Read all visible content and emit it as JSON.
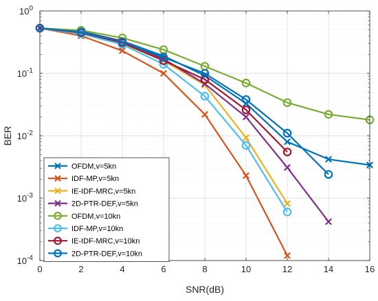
{
  "chart_data": {
    "type": "line",
    "title": "",
    "xlabel": "SNR(dB)",
    "ylabel": "BER",
    "xlim": [
      0,
      16
    ],
    "ylim": [
      0.0001,
      1
    ],
    "y_scale": "log",
    "grid": true,
    "legend_position": "bottom-left",
    "x_ticks": [
      0,
      2,
      4,
      6,
      8,
      10,
      12,
      14,
      16
    ],
    "y_ticks": [
      {
        "value": 0.0001,
        "base": "10",
        "exp": "-4"
      },
      {
        "value": 0.001,
        "base": "10",
        "exp": "-3"
      },
      {
        "value": 0.01,
        "base": "10",
        "exp": "-2"
      },
      {
        "value": 0.1,
        "base": "10",
        "exp": "-1"
      },
      {
        "value": 1,
        "base": "10",
        "exp": "0"
      }
    ],
    "series": [
      {
        "name": "OFDM,v=5kn",
        "color": "#0072BD",
        "marker": "x",
        "x": [
          0,
          2,
          4,
          6,
          8,
          10,
          12,
          14,
          16
        ],
        "y": [
          0.53,
          0.47,
          0.33,
          0.19,
          0.092,
          0.033,
          0.008,
          0.0042,
          0.0034
        ]
      },
      {
        "name": "IDF-MP,v=5kn",
        "color": "#D95319",
        "marker": "x",
        "x": [
          0,
          2,
          4,
          6,
          8,
          10,
          12
        ],
        "y": [
          0.53,
          0.4,
          0.23,
          0.1,
          0.022,
          0.0023,
          0.00012
        ]
      },
      {
        "name": "IE-IDF-MRC,v=5kn",
        "color": "#EDB120",
        "marker": "x",
        "x": [
          0,
          2,
          4,
          6,
          8,
          10,
          12
        ],
        "y": [
          0.53,
          0.44,
          0.3,
          0.16,
          0.065,
          0.0093,
          0.00082
        ]
      },
      {
        "name": "2D-PTR-DEF,v=5kn",
        "color": "#7E2F8E",
        "marker": "x",
        "x": [
          0,
          2,
          4,
          6,
          8,
          10,
          12,
          14
        ],
        "y": [
          0.53,
          0.46,
          0.33,
          0.17,
          0.068,
          0.02,
          0.0031,
          0.00042
        ]
      },
      {
        "name": "OFDM,v=10kn",
        "color": "#77AC30",
        "marker": "o",
        "x": [
          0,
          2,
          4,
          6,
          8,
          10,
          12,
          14,
          16
        ],
        "y": [
          0.53,
          0.49,
          0.37,
          0.24,
          0.13,
          0.07,
          0.034,
          0.022,
          0.018
        ]
      },
      {
        "name": "IDF-MP,v=10kn",
        "color": "#4DBEEE",
        "marker": "o",
        "x": [
          0,
          2,
          4,
          6,
          8,
          10,
          12
        ],
        "y": [
          0.53,
          0.43,
          0.29,
          0.14,
          0.043,
          0.007,
          0.0006
        ]
      },
      {
        "name": "IE-IDF-MRC,v=10kn",
        "color": "#A2142F",
        "marker": "o",
        "x": [
          0,
          2,
          4,
          6,
          8,
          10,
          12
        ],
        "y": [
          0.53,
          0.45,
          0.31,
          0.16,
          0.08,
          0.026,
          0.0055
        ]
      },
      {
        "name": "2D-PTR-DEF,v=10kn",
        "color": "#0072BD",
        "marker": "o",
        "x": [
          0,
          2,
          4,
          6,
          8,
          10,
          12,
          14
        ],
        "y": [
          0.53,
          0.46,
          0.32,
          0.18,
          0.1,
          0.038,
          0.011,
          0.0024
        ]
      }
    ]
  }
}
